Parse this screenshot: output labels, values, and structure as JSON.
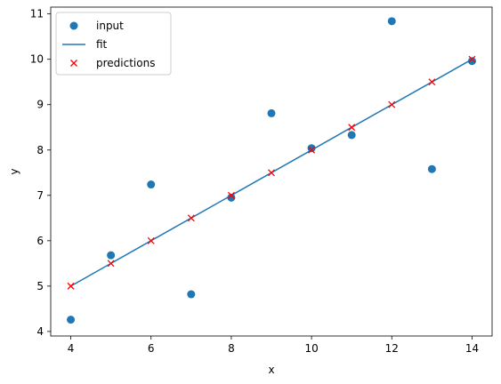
{
  "chart_data": {
    "type": "scatter",
    "title": "",
    "xlabel": "x",
    "ylabel": "y",
    "xlim": [
      3.5,
      14.5
    ],
    "ylim": [
      3.9,
      11.15
    ],
    "xticks": [
      4,
      6,
      8,
      10,
      12,
      14
    ],
    "yticks": [
      4,
      5,
      6,
      7,
      8,
      9,
      10,
      11
    ],
    "grid": false,
    "legend_position": "upper-left",
    "series": [
      {
        "name": "input",
        "kind": "scatter",
        "marker": "circle",
        "color": "#1f77b4",
        "x": [
          4,
          5,
          6,
          7,
          8,
          9,
          10,
          11,
          12,
          13,
          14
        ],
        "y": [
          4.26,
          5.68,
          7.24,
          4.82,
          6.95,
          8.81,
          8.04,
          8.33,
          10.84,
          7.58,
          9.96
        ]
      },
      {
        "name": "fit",
        "kind": "line",
        "color": "#1f77b4",
        "x": [
          4,
          14
        ],
        "y": [
          5.0,
          10.0
        ]
      },
      {
        "name": "predictions",
        "kind": "scatter",
        "marker": "x",
        "color": "#ff0000",
        "x": [
          4,
          5,
          6,
          7,
          8,
          9,
          10,
          11,
          12,
          13,
          14
        ],
        "y": [
          5.0,
          5.5,
          6.0,
          6.5,
          7.0,
          7.5,
          8.0,
          8.5,
          9.0,
          9.5,
          10.0
        ]
      }
    ]
  }
}
